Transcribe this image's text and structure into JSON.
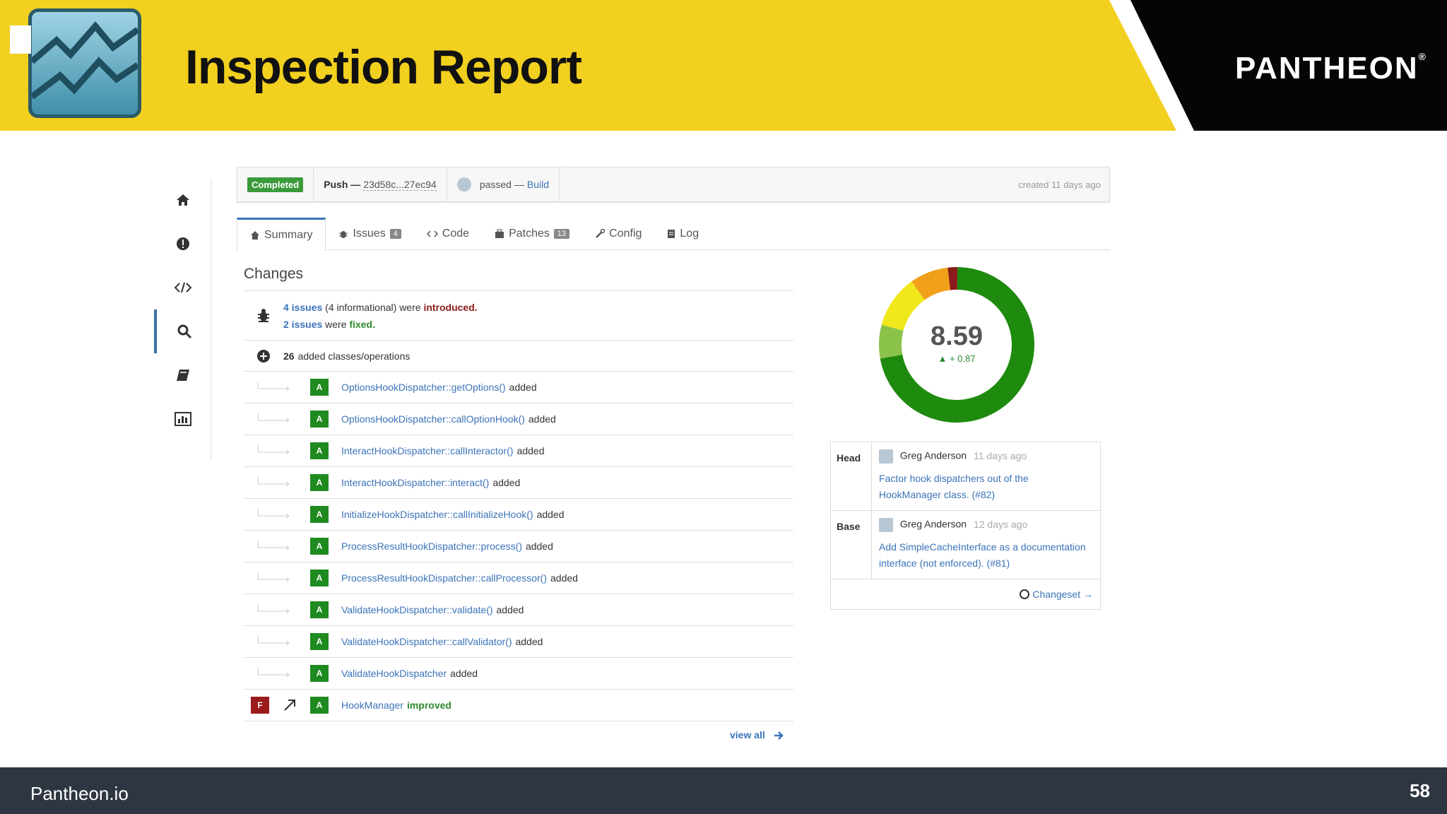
{
  "header": {
    "title": "Inspection Report",
    "brand": "PANTHEON",
    "brand_reg": "®"
  },
  "footer": {
    "site": "Pantheon.io",
    "page_number": "58"
  },
  "status_bar": {
    "status": "Completed",
    "push_label": "Push —",
    "sha_range": "23d58c...27ec94",
    "build_status": "passed —",
    "build_link": "Build",
    "created": "created 11 days ago"
  },
  "tabs": [
    {
      "label": "Summary"
    },
    {
      "label": "Issues",
      "count": "4"
    },
    {
      "label": "Code"
    },
    {
      "label": "Patches",
      "count": "13"
    },
    {
      "label": "Config"
    },
    {
      "label": "Log"
    }
  ],
  "changes": {
    "title": "Changes",
    "introduced_count": "4 issues",
    "introduced_rest": "(4 informational) were",
    "introduced_word": "introduced.",
    "fixed_count": "2 issues",
    "fixed_rest": "were",
    "fixed_word": "fixed.",
    "added_count": "26",
    "added_label": "added classes/operations",
    "items": [
      {
        "badge": "A",
        "name": "OptionsHookDispatcher::getOptions()",
        "status": "added"
      },
      {
        "badge": "A",
        "name": "OptionsHookDispatcher::callOptionHook()",
        "status": "added"
      },
      {
        "badge": "A",
        "name": "InteractHookDispatcher::callInteractor()",
        "status": "added"
      },
      {
        "badge": "A",
        "name": "InteractHookDispatcher::interact()",
        "status": "added"
      },
      {
        "badge": "A",
        "name": "InitializeHookDispatcher::callInitializeHook()",
        "status": "added"
      },
      {
        "badge": "A",
        "name": "ProcessResultHookDispatcher::process()",
        "status": "added"
      },
      {
        "badge": "A",
        "name": "ProcessResultHookDispatcher::callProcessor()",
        "status": "added"
      },
      {
        "badge": "A",
        "name": "ValidateHookDispatcher::validate()",
        "status": "added"
      },
      {
        "badge": "A",
        "name": "ValidateHookDispatcher::callValidator()",
        "status": "added"
      },
      {
        "badge": "A",
        "name": "ValidateHookDispatcher",
        "status": "added"
      }
    ],
    "improved_item": {
      "old_badge": "F",
      "badge": "A",
      "name": "HookManager",
      "status": "improved"
    },
    "view_all": "view all"
  },
  "quality": {
    "score": "8.59",
    "delta": "▲ + 0.87",
    "segments": [
      {
        "color": "#1e8a0e",
        "fraction": 0.72
      },
      {
        "color": "#8bc34a",
        "fraction": 0.07
      },
      {
        "color": "#f0e81a",
        "fraction": 0.11
      },
      {
        "color": "#f0a01a",
        "fraction": 0.08
      },
      {
        "color": "#8b1a1a",
        "fraction": 0.02
      }
    ]
  },
  "vcs": {
    "head_label": "Head",
    "head_author": "Greg Anderson",
    "head_ago": "11 days ago",
    "head_message": "Factor hook dispatchers out of the HookManager class. (#82)",
    "base_label": "Base",
    "base_author": "Greg Anderson",
    "base_ago": "12 days ago",
    "base_message": "Add SimpleCacheInterface as a documentation interface (not enforced). (#81)",
    "changeset": "Changeset →"
  },
  "icons": [
    "home-icon",
    "alert-icon",
    "code-icon",
    "search-icon",
    "book-icon",
    "chart-icon",
    "bug-icon",
    "plus-circle-icon",
    "arrow-right-icon",
    "github-icon"
  ]
}
